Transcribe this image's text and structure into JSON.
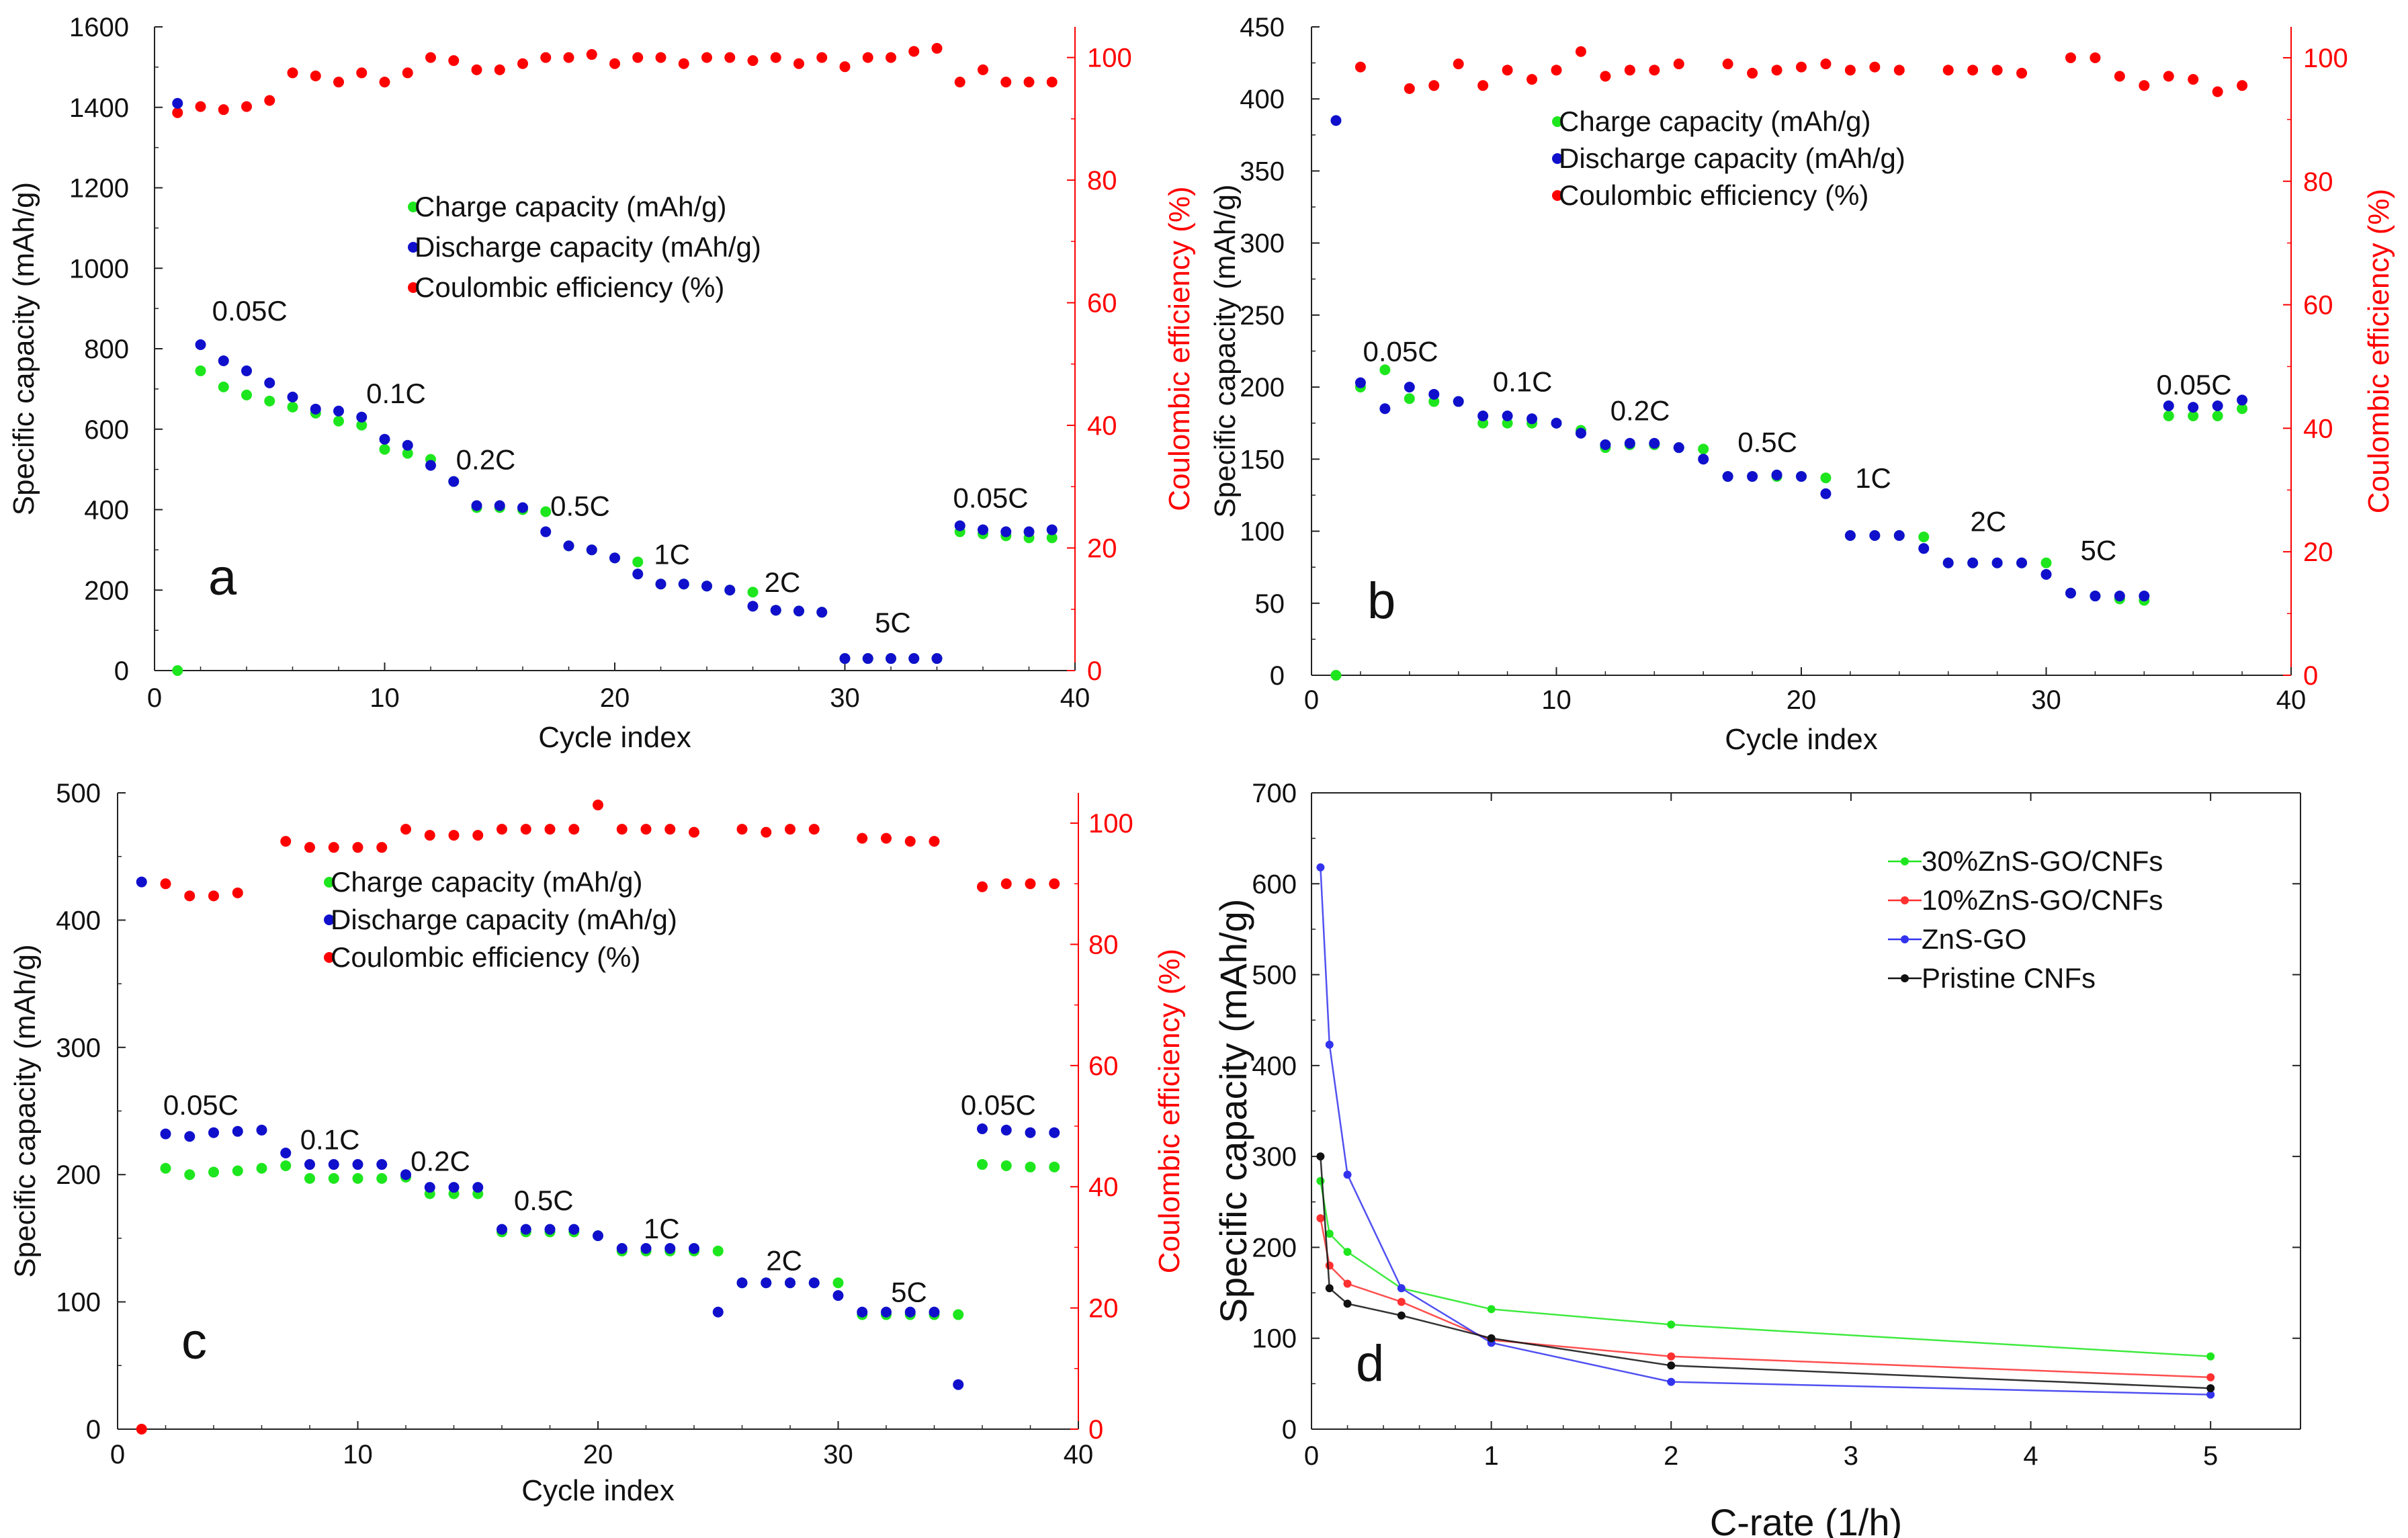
{
  "colors": {
    "charge": "#1ee61e",
    "discharge": "#1010cc",
    "ce": "#ff0000",
    "ce_axis": "#ff0000"
  },
  "chart_data": [
    {
      "id": "a",
      "type": "scatter",
      "panel_label": "a",
      "xlabel": "Cycle index",
      "ylabel": "Specific capacity (mAh/g)",
      "y2label": "Coulombic efficiency (%)",
      "xlim": [
        0,
        40
      ],
      "ylim": [
        0,
        1600
      ],
      "y2lim": [
        0,
        105
      ],
      "xticks": [
        0,
        10,
        20,
        30,
        40
      ],
      "yticks": [
        0,
        200,
        400,
        600,
        800,
        1000,
        1200,
        1400,
        1600
      ],
      "y2ticks": [
        0,
        20,
        40,
        60,
        80,
        100
      ],
      "legend": [
        "Charge capacity (mAh/g)",
        "Discharge capacity (mAh/g)",
        "Coulombic efficiency (%)"
      ],
      "cycles": [
        1,
        2,
        3,
        4,
        5,
        6,
        7,
        8,
        9,
        10,
        11,
        12,
        13,
        14,
        15,
        16,
        17,
        18,
        19,
        20,
        21,
        22,
        23,
        24,
        25,
        26,
        27,
        28,
        29,
        30,
        31,
        32,
        33,
        34,
        35,
        36,
        37,
        38,
        39
      ],
      "charge": [
        0,
        745,
        705,
        685,
        670,
        655,
        640,
        620,
        610,
        550,
        540,
        525,
        470,
        405,
        405,
        400,
        395,
        310,
        300,
        280,
        270,
        215,
        215,
        210,
        200,
        195,
        150,
        148,
        145,
        30,
        30,
        30,
        30,
        30,
        345,
        340,
        335,
        330,
        330
      ],
      "discharge": [
        1410,
        810,
        770,
        745,
        715,
        680,
        650,
        645,
        630,
        575,
        560,
        510,
        470,
        410,
        410,
        405,
        345,
        310,
        300,
        280,
        240,
        215,
        215,
        210,
        200,
        160,
        150,
        148,
        145,
        30,
        30,
        30,
        30,
        30,
        360,
        350,
        345,
        345,
        350
      ],
      "ce": [
        91,
        92,
        91.5,
        92,
        93,
        97.5,
        97,
        96,
        97.5,
        96,
        97.5,
        100,
        99.5,
        98,
        98,
        99,
        100,
        100,
        100.5,
        99,
        100,
        100,
        99,
        100,
        100,
        99.5,
        100,
        99,
        100,
        98.5,
        100,
        100,
        101,
        101.5,
        96,
        98,
        96,
        96,
        96
      ],
      "rate_labels": [
        {
          "text": "0.05C",
          "x": 2.5,
          "y": 870
        },
        {
          "text": "0.1C",
          "x": 9.2,
          "y": 665
        },
        {
          "text": "0.2C",
          "x": 13.1,
          "y": 500
        },
        {
          "text": "0.5C",
          "x": 17.2,
          "y": 385
        },
        {
          "text": "1C",
          "x": 21.7,
          "y": 265
        },
        {
          "text": "2C",
          "x": 26.5,
          "y": 195
        },
        {
          "text": "5C",
          "x": 31.3,
          "y": 95
        },
        {
          "text": "0.05C",
          "x": 34.7,
          "y": 405
        }
      ]
    },
    {
      "id": "b",
      "type": "scatter",
      "panel_label": "b",
      "xlabel": "Cycle index",
      "ylabel": "Specific capacity (mAh/g)",
      "y2label": "Coulombic efficiency (%)",
      "xlim": [
        0,
        40
      ],
      "ylim": [
        0,
        450
      ],
      "y2lim": [
        0,
        105
      ],
      "xticks": [
        0,
        10,
        20,
        30,
        40
      ],
      "yticks": [
        0,
        50,
        100,
        150,
        200,
        250,
        300,
        350,
        400,
        450
      ],
      "y2ticks": [
        0,
        20,
        40,
        60,
        80,
        100
      ],
      "legend": [
        "Charge capacity (mAh/g)",
        "Discharge capacity (mAh/g)",
        "Coulombic efficiency (%)"
      ],
      "cycles": [
        1,
        2,
        3,
        4,
        5,
        6,
        7,
        8,
        9,
        10,
        11,
        12,
        13,
        14,
        15,
        16,
        17,
        18,
        19,
        20,
        21,
        22,
        23,
        24,
        25,
        26,
        27,
        28,
        29,
        30,
        31,
        32,
        33,
        34,
        35,
        36,
        37,
        38
      ],
      "charge": [
        0,
        200,
        212,
        192,
        190,
        190,
        175,
        175,
        175,
        175,
        170,
        158,
        160,
        160,
        158,
        157,
        138,
        138,
        138,
        138,
        137,
        97,
        97,
        97,
        96,
        78,
        78,
        78,
        78,
        78,
        57,
        55,
        53,
        52,
        180,
        180,
        180,
        185
      ],
      "discharge": [
        385,
        203,
        185,
        200,
        195,
        190,
        180,
        180,
        178,
        175,
        168,
        160,
        161,
        161,
        158,
        150,
        138,
        138,
        139,
        138,
        126,
        97,
        97,
        97,
        88,
        78,
        78,
        78,
        78,
        70,
        57,
        55,
        55,
        55,
        187,
        186,
        187,
        191
      ],
      "ce": [
        null,
        98.5,
        null,
        95,
        95.5,
        99,
        95.5,
        98,
        96.5,
        98,
        101,
        97,
        98,
        98,
        99,
        null,
        99,
        97.5,
        98,
        98.5,
        99,
        98,
        98.5,
        98,
        null,
        98,
        98,
        98,
        97.5,
        null,
        100,
        100,
        97,
        95.5,
        97,
        96.5,
        94.5,
        95.5
      ],
      "rate_labels": [
        {
          "text": "0.05C",
          "x": 2.1,
          "y": 218
        },
        {
          "text": "0.1C",
          "x": 7.4,
          "y": 197
        },
        {
          "text": "0.2C",
          "x": 12.2,
          "y": 177
        },
        {
          "text": "0.5C",
          "x": 17.4,
          "y": 155
        },
        {
          "text": "1C",
          "x": 22.2,
          "y": 130
        },
        {
          "text": "2C",
          "x": 26.9,
          "y": 100
        },
        {
          "text": "5C",
          "x": 31.4,
          "y": 80
        },
        {
          "text": "0.05C",
          "x": 34.5,
          "y": 195
        }
      ]
    },
    {
      "id": "c",
      "type": "scatter",
      "panel_label": "c",
      "xlabel": "Cycle index",
      "ylabel": "Specific capacity (mAh/g)",
      "y2label": "Coulombic efficiency (%)",
      "xlim": [
        0,
        40
      ],
      "ylim": [
        0,
        500
      ],
      "y2lim": [
        0,
        105
      ],
      "xticks": [
        0,
        10,
        20,
        30,
        40
      ],
      "yticks": [
        0,
        100,
        200,
        300,
        400,
        500
      ],
      "y2ticks": [
        0,
        20,
        40,
        60,
        80,
        100
      ],
      "legend": [
        "Charge capacity (mAh/g)",
        "Discharge capacity (mAh/g)",
        "Coulombic efficiency (%)"
      ],
      "cycles": [
        1,
        2,
        3,
        4,
        5,
        6,
        7,
        8,
        9,
        10,
        11,
        12,
        13,
        14,
        15,
        16,
        17,
        18,
        19,
        20,
        21,
        22,
        23,
        24,
        25,
        26,
        27,
        28,
        29,
        30,
        31,
        32,
        33,
        34,
        35,
        36,
        37,
        38,
        39
      ],
      "charge": [
        null,
        205,
        200,
        202,
        203,
        205,
        207,
        197,
        197,
        197,
        197,
        198,
        185,
        185,
        185,
        155,
        155,
        155,
        155,
        152,
        140,
        140,
        140,
        140,
        140,
        115,
        115,
        115,
        115,
        115,
        90,
        90,
        90,
        90,
        90,
        208,
        207,
        206,
        206
      ],
      "discharge": [
        430,
        232,
        230,
        233,
        234,
        235,
        217,
        208,
        208,
        208,
        208,
        200,
        190,
        190,
        190,
        157,
        157,
        157,
        157,
        152,
        142,
        142,
        142,
        142,
        92,
        115,
        115,
        115,
        115,
        105,
        92,
        92,
        92,
        92,
        35,
        236,
        235,
        233,
        233
      ],
      "ce": [
        0,
        90,
        88,
        88,
        88.5,
        null,
        97,
        96,
        96,
        96,
        96,
        99,
        98,
        98,
        98,
        99,
        99,
        99,
        99,
        103,
        99,
        99,
        99,
        98.5,
        null,
        99,
        98.5,
        99,
        99,
        null,
        97.5,
        97.5,
        97,
        97,
        null,
        89.5,
        90,
        90,
        90
      ],
      "rate_labels": [
        {
          "text": "0.05C",
          "x": 1.9,
          "y": 247
        },
        {
          "text": "0.1C",
          "x": 7.6,
          "y": 220
        },
        {
          "text": "0.2C",
          "x": 12.2,
          "y": 203
        },
        {
          "text": "0.5C",
          "x": 16.5,
          "y": 172
        },
        {
          "text": "1C",
          "x": 21.9,
          "y": 150
        },
        {
          "text": "2C",
          "x": 27.0,
          "y": 125
        },
        {
          "text": "5C",
          "x": 32.2,
          "y": 100
        },
        {
          "text": "0.05C",
          "x": 35.1,
          "y": 247
        }
      ]
    },
    {
      "id": "d",
      "type": "line",
      "panel_label": "d",
      "xlabel": "C-rate (1/h)",
      "ylabel": "Specific capacity (mAh/g)",
      "xlim": [
        0,
        5.5
      ],
      "ylim": [
        0,
        700
      ],
      "xticks": [
        0,
        1,
        2,
        3,
        4,
        5
      ],
      "yticks": [
        0,
        100,
        200,
        300,
        400,
        500,
        600,
        700
      ],
      "x": [
        0.05,
        0.1,
        0.2,
        0.5,
        1,
        2,
        5
      ],
      "series": [
        {
          "name": "30%ZnS-GO/CNFs",
          "color": "#1ee61e",
          "values": [
            273,
            215,
            195,
            155,
            132,
            115,
            80
          ]
        },
        {
          "name": "10%ZnS-GO/CNFs",
          "color": "#ff3030",
          "values": [
            232,
            180,
            160,
            140,
            98,
            80,
            57
          ]
        },
        {
          "name": "ZnS-GO",
          "color": "#3333ee",
          "values": [
            618,
            423,
            280,
            155,
            95,
            52,
            38
          ]
        },
        {
          "name": "Pristine CNFs",
          "color": "#111111",
          "values": [
            300,
            155,
            138,
            125,
            100,
            70,
            45
          ]
        }
      ]
    }
  ]
}
